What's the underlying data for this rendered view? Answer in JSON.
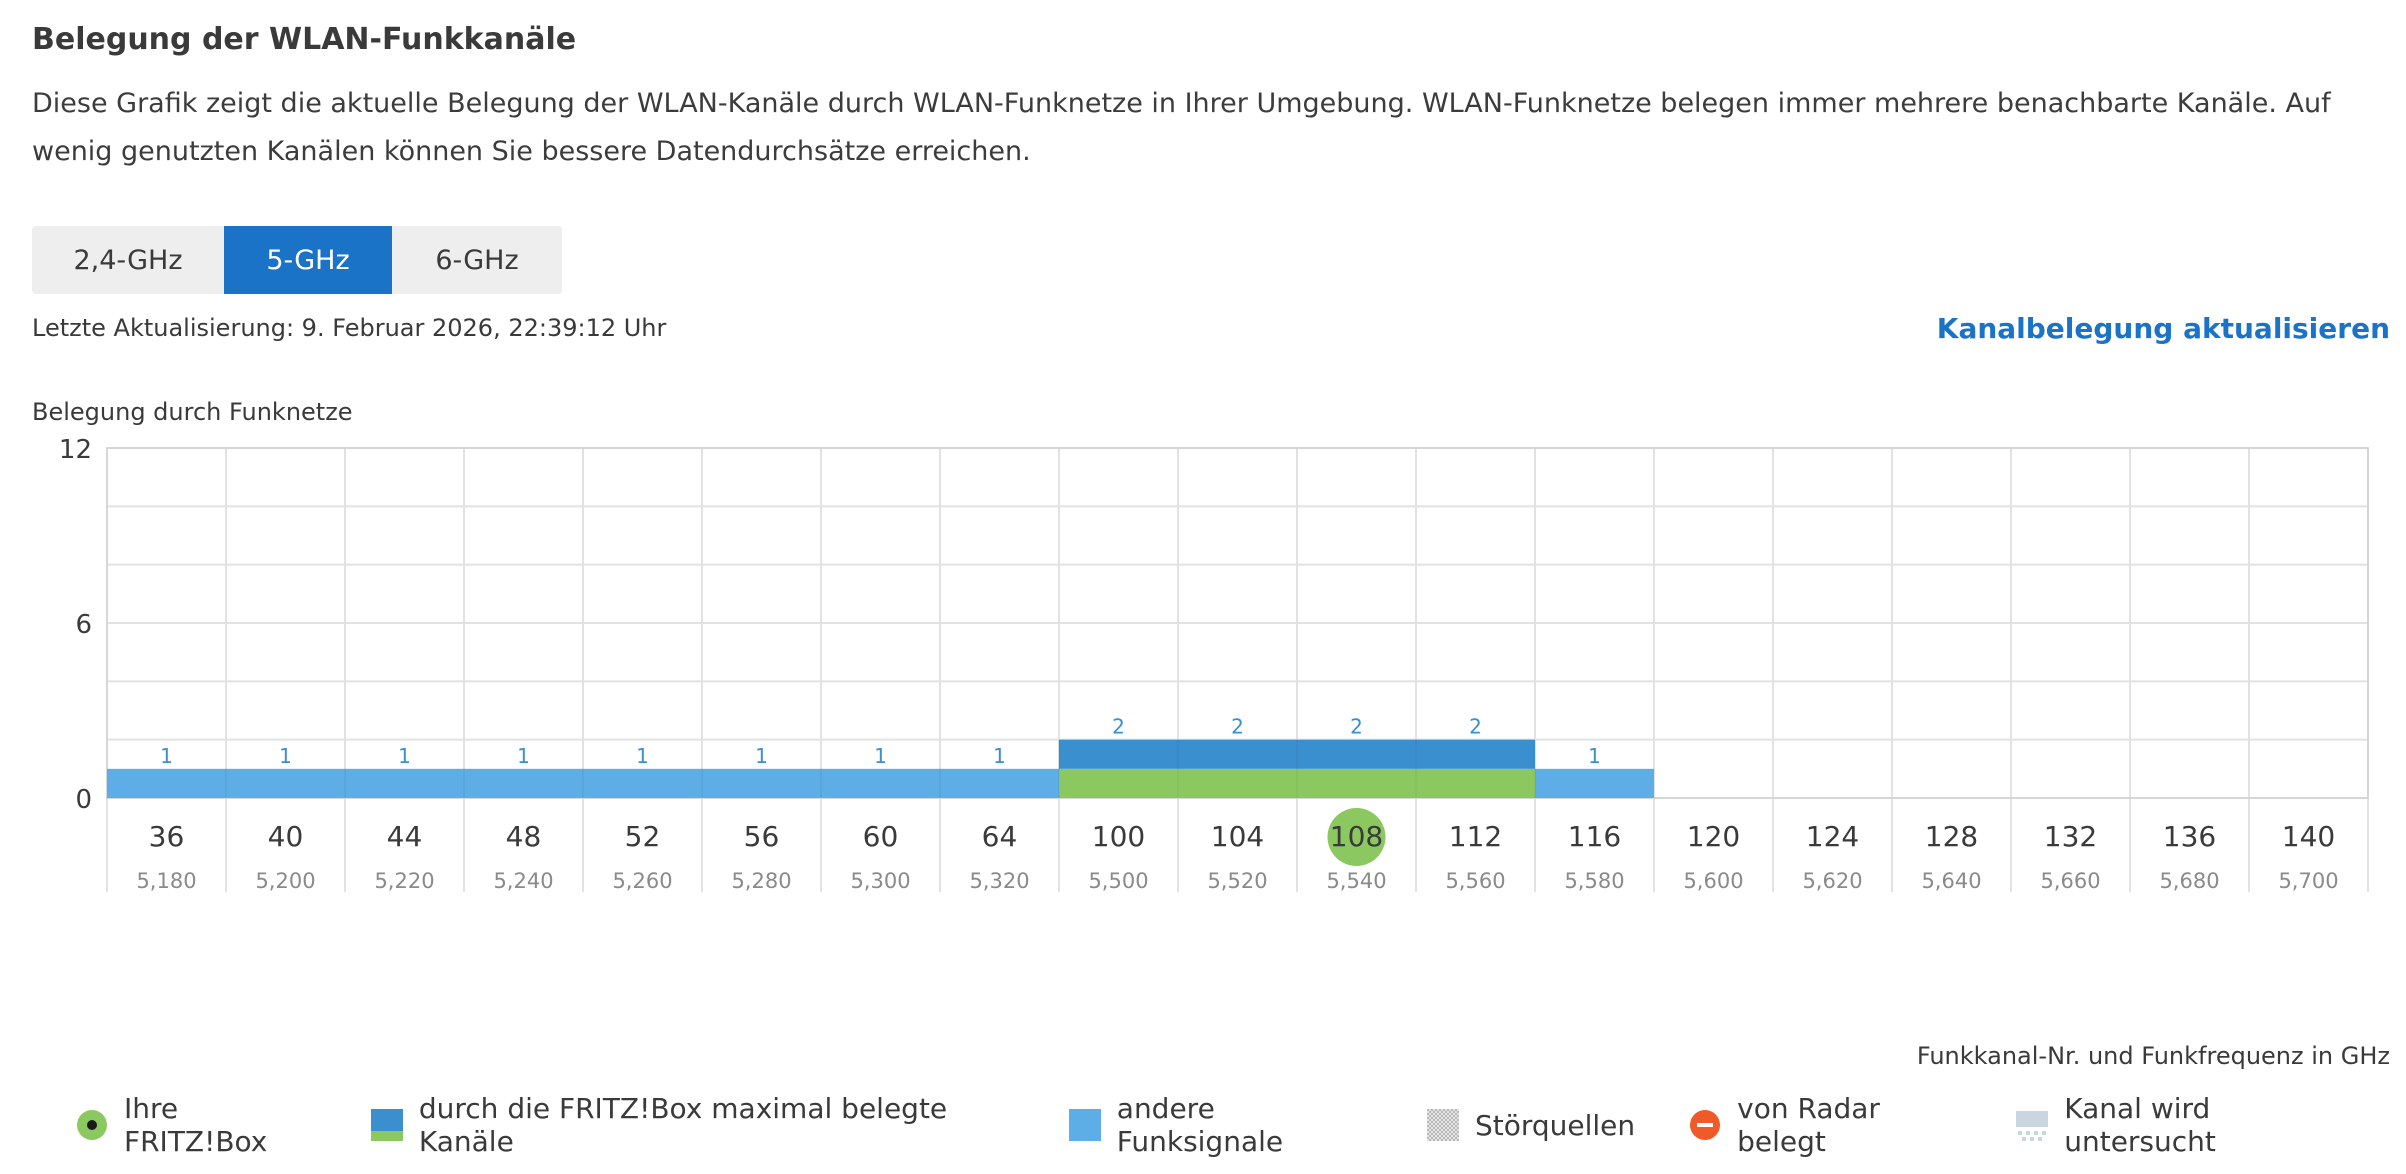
{
  "page": {
    "title": "Belegung der WLAN-Funkkanäle",
    "description": "Diese Grafik zeigt die aktuelle Belegung der WLAN-Kanäle durch WLAN-Funknetze in Ihrer Umgebung. WLAN-Funknetze belegen immer mehrere benachbarte Kanäle. Auf wenig genutzten Kanälen können Sie bessere Datendurchsätze erreichen."
  },
  "tabs": [
    {
      "label": "2,4-GHz",
      "active": false
    },
    {
      "label": "5-GHz",
      "active": true
    },
    {
      "label": "6-GHz",
      "active": false
    }
  ],
  "status": {
    "last_update": "Letzte Aktualisierung: 9. Februar 2026, 22:39:12 Uhr",
    "refresh_link": "Kanalbelegung aktualisieren"
  },
  "chart_data": {
    "type": "bar",
    "ylabel": "Belegung durch Funknetze",
    "xlabel": "Funkkanal-Nr. und Funkfrequenz in GHz",
    "ylim": [
      0,
      12
    ],
    "yticks": [
      "0",
      "6",
      "12"
    ],
    "categories": [
      "36",
      "40",
      "44",
      "48",
      "52",
      "56",
      "60",
      "64",
      "100",
      "104",
      "108",
      "112",
      "116",
      "120",
      "124",
      "128",
      "132",
      "136",
      "140"
    ],
    "frequencies": [
      "5,180",
      "5,200",
      "5,220",
      "5,240",
      "5,260",
      "5,280",
      "5,300",
      "5,320",
      "5,500",
      "5,520",
      "5,540",
      "5,560",
      "5,580",
      "5,600",
      "5,620",
      "5,640",
      "5,660",
      "5,680",
      "5,700"
    ],
    "series": [
      {
        "name": "durch die FRITZ!Box maximal belegte Kanäle",
        "values": [
          0,
          0,
          0,
          0,
          0,
          0,
          0,
          0,
          1,
          1,
          1,
          1,
          0,
          0,
          0,
          0,
          0,
          0,
          0
        ]
      },
      {
        "name": "andere Funksignale",
        "values": [
          1,
          1,
          1,
          1,
          1,
          1,
          1,
          1,
          1,
          1,
          1,
          1,
          1,
          0,
          0,
          0,
          0,
          0,
          0
        ]
      }
    ],
    "totals": [
      1,
      1,
      1,
      1,
      1,
      1,
      1,
      1,
      2,
      2,
      2,
      2,
      1,
      null,
      null,
      null,
      null,
      null,
      null
    ],
    "own_channel": "108",
    "grid": true
  },
  "legend": [
    {
      "key": "own",
      "label": "Ihre FRITZ!Box",
      "icon": "fritzbox-dot-icon"
    },
    {
      "key": "max",
      "label": "durch die FRITZ!Box maximal belegte Kanäle",
      "icon": "max-channels-swatch"
    },
    {
      "key": "other",
      "label": "andere Funksignale",
      "icon": "other-signals-swatch"
    },
    {
      "key": "noise",
      "label": "Störquellen",
      "icon": "interference-swatch"
    },
    {
      "key": "radar",
      "label": "von Radar belegt",
      "icon": "radar-icon"
    },
    {
      "key": "scan",
      "label": "Kanal wird untersucht",
      "icon": "scanning-swatch"
    }
  ],
  "colors": {
    "accent": "#1b73c8",
    "fritzbox": "#8bc960",
    "fritzbox_dark": "#3a8fcf",
    "other": "#5dade6",
    "radar": "#f05a28",
    "label_blue": "#3a8fcf"
  }
}
